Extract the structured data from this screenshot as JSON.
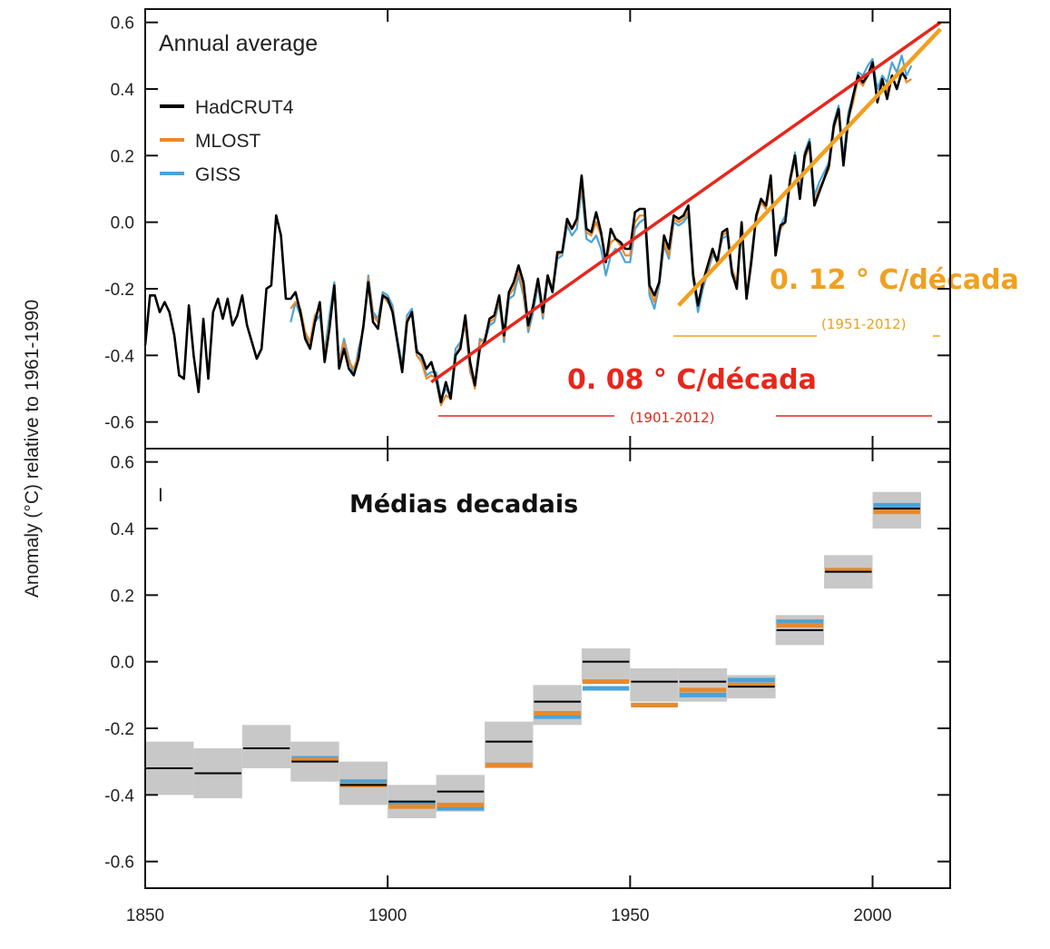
{
  "chart_data": [
    {
      "type": "line",
      "title": "Annual average",
      "ylabel": "Anomaly (°C) relative to 1961-1990",
      "xlim": [
        1850,
        2016
      ],
      "ylim": [
        -0.68,
        0.64
      ],
      "yticks": [
        "0.6",
        "0.4",
        "0.2",
        "0.0",
        "-0.2",
        "-0.4",
        "-0.6"
      ],
      "xticks": [
        "1850",
        "1900",
        "1950",
        "2000"
      ],
      "legend": [
        "HadCRUT4",
        "MLOST",
        "GISS"
      ],
      "legend_position": "top-left",
      "series": [
        {
          "name": "HadCRUT4",
          "color": "#000000",
          "x_start": 1850,
          "values": [
            -0.37,
            -0.22,
            -0.22,
            -0.27,
            -0.24,
            -0.27,
            -0.34,
            -0.46,
            -0.47,
            -0.25,
            -0.4,
            -0.51,
            -0.29,
            -0.47,
            -0.27,
            -0.23,
            -0.29,
            -0.23,
            -0.31,
            -0.28,
            -0.22,
            -0.31,
            -0.36,
            -0.41,
            -0.38,
            -0.2,
            -0.19,
            0.02,
            -0.04,
            -0.23,
            -0.23,
            -0.21,
            -0.27,
            -0.35,
            -0.38,
            -0.3,
            -0.24,
            -0.42,
            -0.32,
            -0.19,
            -0.44,
            -0.38,
            -0.44,
            -0.46,
            -0.41,
            -0.31,
            -0.18,
            -0.3,
            -0.32,
            -0.22,
            -0.23,
            -0.27,
            -0.36,
            -0.45,
            -0.3,
            -0.27,
            -0.39,
            -0.4,
            -0.44,
            -0.42,
            -0.47,
            -0.54,
            -0.48,
            -0.53,
            -0.4,
            -0.38,
            -0.28,
            -0.42,
            -0.49,
            -0.38,
            -0.36,
            -0.29,
            -0.28,
            -0.22,
            -0.34,
            -0.21,
            -0.18,
            -0.13,
            -0.18,
            -0.31,
            -0.25,
            -0.17,
            -0.27,
            -0.16,
            -0.21,
            -0.09,
            -0.09,
            0.01,
            -0.02,
            0.01,
            0.14,
            -0.02,
            -0.03,
            0.03,
            -0.03,
            -0.12,
            -0.02,
            -0.05,
            -0.06,
            -0.08,
            -0.08,
            0.03,
            0.04,
            0.04,
            -0.19,
            -0.22,
            -0.18,
            -0.04,
            -0.08,
            0.02,
            0.01,
            0.02,
            0.05,
            -0.16,
            -0.25,
            -0.18,
            -0.13,
            -0.08,
            -0.12,
            -0.03,
            -0.02,
            -0.15,
            -0.2,
            0.0,
            -0.23,
            -0.12,
            0.02,
            0.07,
            0.05,
            0.14,
            -0.1,
            -0.01,
            0.0,
            0.13,
            0.2,
            0.07,
            0.2,
            0.24,
            0.05,
            0.09,
            0.13,
            0.17,
            0.29,
            0.34,
            0.17,
            0.31,
            0.38,
            0.44,
            0.42,
            0.44,
            0.48,
            0.36,
            0.43,
            0.37,
            0.44,
            0.4,
            0.45,
            0.43
          ]
        },
        {
          "name": "MLOST",
          "color": "#e8892b",
          "x_start": 1880,
          "values": [
            -0.26,
            -0.24,
            -0.26,
            -0.33,
            -0.36,
            -0.28,
            -0.26,
            -0.4,
            -0.31,
            -0.19,
            -0.43,
            -0.36,
            -0.42,
            -0.44,
            -0.4,
            -0.31,
            -0.17,
            -0.28,
            -0.3,
            -0.22,
            -0.24,
            -0.26,
            -0.36,
            -0.44,
            -0.29,
            -0.28,
            -0.4,
            -0.42,
            -0.47,
            -0.46,
            -0.47,
            -0.55,
            -0.52,
            -0.53,
            -0.4,
            -0.37,
            -0.3,
            -0.44,
            -0.5,
            -0.36,
            -0.35,
            -0.3,
            -0.29,
            -0.23,
            -0.35,
            -0.22,
            -0.2,
            -0.14,
            -0.21,
            -0.32,
            -0.25,
            -0.18,
            -0.28,
            -0.16,
            -0.2,
            -0.1,
            -0.09,
            0.0,
            -0.02,
            0.0,
            0.12,
            -0.03,
            -0.04,
            0.0,
            -0.04,
            -0.12,
            -0.06,
            -0.05,
            -0.07,
            -0.1,
            -0.1,
            0.0,
            0.02,
            0.02,
            -0.2,
            -0.24,
            -0.18,
            -0.06,
            -0.1,
            0.01,
            0.0,
            0.01,
            0.03,
            -0.15,
            -0.24,
            -0.19,
            -0.14,
            -0.09,
            -0.12,
            -0.04,
            -0.03,
            -0.14,
            -0.18,
            -0.01,
            -0.22,
            -0.11,
            0.01,
            0.06,
            0.04,
            0.12,
            -0.08,
            -0.02,
            0.0,
            0.12,
            0.19,
            0.07,
            0.19,
            0.23,
            0.06,
            0.1,
            0.13,
            0.16,
            0.28,
            0.33,
            0.17,
            0.31,
            0.36,
            0.43,
            0.41,
            0.44,
            0.47,
            0.37,
            0.42,
            0.39,
            0.44,
            0.4,
            0.46,
            0.42,
            0.43
          ]
        },
        {
          "name": "GISS",
          "color": "#4aa3d8",
          "x_start": 1880,
          "values": [
            -0.3,
            -0.24,
            -0.28,
            -0.34,
            -0.38,
            -0.3,
            -0.28,
            -0.39,
            -0.28,
            -0.18,
            -0.42,
            -0.35,
            -0.41,
            -0.46,
            -0.38,
            -0.32,
            -0.16,
            -0.27,
            -0.29,
            -0.21,
            -0.22,
            -0.25,
            -0.35,
            -0.43,
            -0.28,
            -0.26,
            -0.38,
            -0.41,
            -0.46,
            -0.45,
            -0.45,
            -0.53,
            -0.5,
            -0.52,
            -0.38,
            -0.36,
            -0.31,
            -0.45,
            -0.49,
            -0.35,
            -0.36,
            -0.31,
            -0.3,
            -0.24,
            -0.36,
            -0.23,
            -0.22,
            -0.16,
            -0.22,
            -0.33,
            -0.27,
            -0.19,
            -0.29,
            -0.17,
            -0.21,
            -0.11,
            -0.1,
            -0.01,
            -0.04,
            -0.02,
            0.1,
            -0.05,
            -0.06,
            -0.04,
            -0.08,
            -0.16,
            -0.1,
            -0.08,
            -0.09,
            -0.12,
            -0.12,
            -0.02,
            0.0,
            0.01,
            -0.22,
            -0.26,
            -0.19,
            -0.07,
            -0.11,
            0.0,
            -0.01,
            0.0,
            0.02,
            -0.17,
            -0.27,
            -0.2,
            -0.15,
            -0.1,
            -0.11,
            -0.05,
            -0.04,
            -0.16,
            -0.19,
            -0.02,
            -0.23,
            -0.1,
            0.02,
            0.07,
            0.05,
            0.13,
            -0.06,
            -0.01,
            0.02,
            0.13,
            0.21,
            0.09,
            0.21,
            0.25,
            0.08,
            0.12,
            0.15,
            0.18,
            0.3,
            0.35,
            0.19,
            0.33,
            0.38,
            0.45,
            0.44,
            0.47,
            0.49,
            0.4,
            0.44,
            0.42,
            0.48,
            0.45,
            0.5,
            0.44,
            0.47
          ]
        }
      ],
      "trends": [
        {
          "label": "0. 08 ° C/década",
          "period": "(1901-2012)",
          "color": "#e8261b",
          "x1": 1909,
          "y1": -0.48,
          "x2": 2014,
          "y2": 0.6
        },
        {
          "label": "0. 12 ° C/década",
          "period": "(1951-2012)",
          "color": "#f0a020",
          "x1": 1960,
          "y1": -0.25,
          "x2": 2014,
          "y2": 0.58
        }
      ]
    },
    {
      "type": "bar",
      "title": "Médias decadais",
      "corner_label": "I",
      "ylim": [
        -0.68,
        0.64
      ],
      "xlim": [
        1850,
        2016
      ],
      "decades": [
        1850,
        1860,
        1870,
        1880,
        1890,
        1900,
        1910,
        1920,
        1930,
        1940,
        1950,
        1960,
        1970,
        1980,
        1990,
        2000
      ],
      "uncertainty_low": [
        -0.4,
        -0.41,
        -0.32,
        -0.36,
        -0.43,
        -0.47,
        -0.45,
        -0.32,
        -0.19,
        -0.06,
        -0.12,
        -0.12,
        -0.11,
        0.05,
        0.22,
        0.4
      ],
      "uncertainty_high": [
        -0.24,
        -0.26,
        -0.19,
        -0.24,
        -0.3,
        -0.37,
        -0.34,
        -0.18,
        -0.07,
        0.04,
        -0.02,
        -0.02,
        -0.04,
        0.14,
        0.32,
        0.51
      ],
      "series": [
        {
          "name": "HadCRUT4",
          "color": "#000000",
          "values": [
            -0.32,
            -0.335,
            -0.26,
            -0.3,
            -0.37,
            -0.42,
            -0.39,
            -0.24,
            -0.12,
            0.0,
            -0.06,
            -0.06,
            -0.075,
            0.095,
            0.27,
            0.46
          ]
        },
        {
          "name": "MLOST",
          "color": "#e8892b",
          "values": [
            null,
            null,
            null,
            -0.295,
            -0.37,
            -0.435,
            -0.43,
            -0.31,
            -0.155,
            -0.06,
            -0.13,
            -0.085,
            -0.07,
            0.11,
            0.275,
            0.45
          ]
        },
        {
          "name": "GISS",
          "color": "#4aa3d8",
          "values": [
            null,
            null,
            null,
            -0.29,
            -0.36,
            -0.425,
            -0.44,
            -0.31,
            -0.165,
            -0.08,
            -0.13,
            -0.1,
            -0.055,
            0.12,
            0.275,
            0.47
          ]
        }
      ]
    }
  ]
}
